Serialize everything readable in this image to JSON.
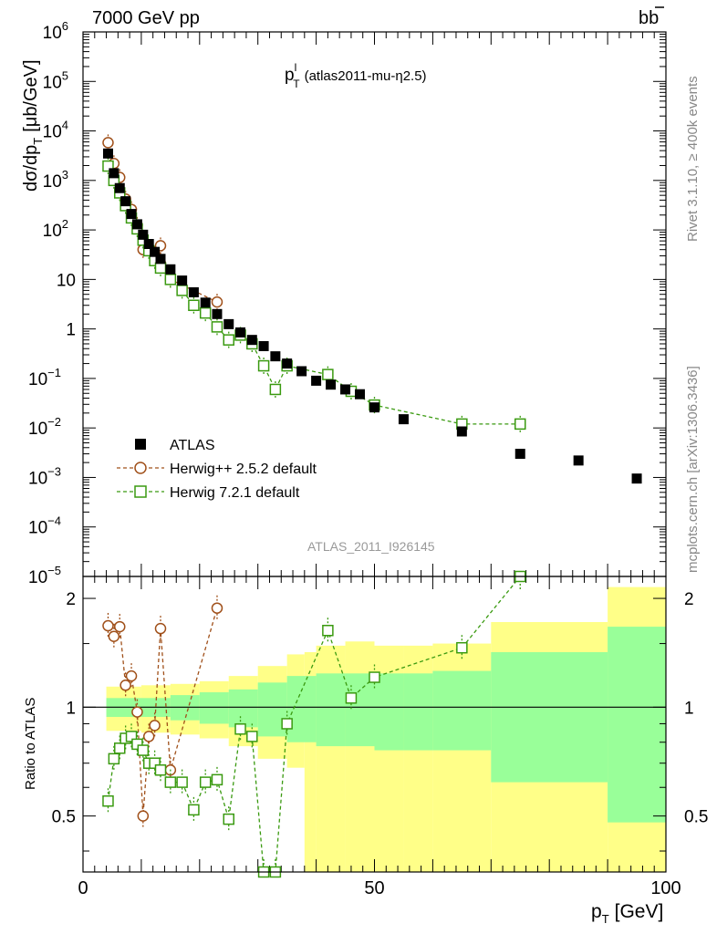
{
  "header": {
    "energy_label": "7000 GeV pp",
    "process_base": "b",
    "process_bar": "b"
  },
  "main_title": {
    "base": "p",
    "sup": "l",
    "sub": "T",
    "tag": "(atlas2011-mu-η2.5)"
  },
  "side_labels": {
    "rivet": "Rivet 3.1.10, ≥ 400k events",
    "mcplots": "mcplots.cern.ch [arXiv:1306.3436]"
  },
  "watermark": "ATLAS_2011_I926145",
  "legend": {
    "atlas": "ATLAS",
    "herwig_pp": "Herwig++ 2.5.2 default",
    "herwig7": "Herwig 7.2.1 default"
  },
  "axes": {
    "xlabel_base": "p",
    "xlabel_sub": "T",
    "xlabel_unit": "[GeV]",
    "ylabel_top_dsig": "dσ/dp",
    "ylabel_top_sub": "T",
    "ylabel_top_unit": "[μb/GeV]",
    "ylabel_ratio": "Ratio to ATLAS"
  },
  "colors": {
    "atlas": "#000000",
    "herwig_pp": "#a0501a",
    "herwig7": "#3a9a10",
    "band_inner": "#99ff99",
    "band_outer": "#ffff88"
  },
  "chart_data": {
    "type": "scatter",
    "xlim": [
      0,
      100
    ],
    "ylim": [
      1e-05,
      1000000.0
    ],
    "ratio_ylim": [
      0.35,
      2.3
    ],
    "log_y": true,
    "x_ticks": [
      0,
      50,
      100
    ],
    "ratio_ticks": [
      0.5,
      1,
      2
    ],
    "y_ticks": [
      {
        "v": 1e-05,
        "base": "10",
        "exp": "−5"
      },
      {
        "v": 0.0001,
        "base": "10",
        "exp": "−4"
      },
      {
        "v": 0.001,
        "base": "10",
        "exp": "−3"
      },
      {
        "v": 0.01,
        "base": "10",
        "exp": "−2"
      },
      {
        "v": 0.1,
        "base": "10",
        "exp": "−1"
      },
      {
        "v": 1,
        "base": "1",
        "exp": ""
      },
      {
        "v": 10,
        "base": "10",
        "exp": ""
      },
      {
        "v": 100,
        "base": "10",
        "exp": "2"
      },
      {
        "v": 1000,
        "base": "10",
        "exp": "3"
      },
      {
        "v": 10000,
        "base": "10",
        "exp": "4"
      },
      {
        "v": 100000,
        "base": "10",
        "exp": "5"
      },
      {
        "v": 1000000,
        "base": "10",
        "exp": "6"
      }
    ],
    "atlas": {
      "x": [
        4.3,
        5.3,
        6.3,
        7.3,
        8.3,
        9.3,
        10.3,
        11.3,
        12.3,
        13.3,
        15,
        17,
        19,
        21,
        23,
        25,
        27,
        29,
        31,
        33,
        35,
        37.5,
        40,
        42.5,
        45,
        47.5,
        50,
        55,
        65,
        75,
        85,
        95
      ],
      "y": [
        3500,
        1400,
        700,
        380,
        210,
        130,
        80,
        52,
        36,
        26,
        16,
        9.5,
        5.5,
        3.4,
        2.0,
        1.25,
        0.85,
        0.6,
        0.45,
        0.28,
        0.2,
        0.14,
        0.09,
        0.075,
        0.06,
        0.048,
        0.026,
        0.015,
        0.0085,
        0.003,
        0.0022,
        0.00095
      ],
      "stat_band": [
        {
          "x0": 4,
          "x1": 15,
          "lo": 0.94,
          "hi": 1.06
        },
        {
          "x0": 15,
          "x1": 20,
          "lo": 0.92,
          "hi": 1.08
        },
        {
          "x0": 20,
          "x1": 25,
          "lo": 0.9,
          "hi": 1.1
        },
        {
          "x0": 25,
          "x1": 30,
          "lo": 0.88,
          "hi": 1.12
        },
        {
          "x0": 30,
          "x1": 35,
          "lo": 0.83,
          "hi": 1.17
        },
        {
          "x0": 35,
          "x1": 40,
          "lo": 0.8,
          "hi": 1.22
        },
        {
          "x0": 40,
          "x1": 45,
          "lo": 0.78,
          "hi": 1.24
        },
        {
          "x0": 45,
          "x1": 50,
          "lo": 0.78,
          "hi": 1.24
        },
        {
          "x0": 50,
          "x1": 55,
          "lo": 0.76,
          "hi": 1.24
        },
        {
          "x0": 55,
          "x1": 60,
          "lo": 0.76,
          "hi": 1.24
        },
        {
          "x0": 60,
          "x1": 70,
          "lo": 0.76,
          "hi": 1.26
        },
        {
          "x0": 70,
          "x1": 90,
          "lo": 0.62,
          "hi": 1.42
        },
        {
          "x0": 90,
          "x1": 100,
          "lo": 0.48,
          "hi": 1.67
        }
      ],
      "total_band": [
        {
          "x0": 4,
          "x1": 10,
          "lo": 0.86,
          "hi": 1.14
        },
        {
          "x0": 10,
          "x1": 15,
          "lo": 0.85,
          "hi": 1.15
        },
        {
          "x0": 15,
          "x1": 20,
          "lo": 0.84,
          "hi": 1.16
        },
        {
          "x0": 20,
          "x1": 25,
          "lo": 0.82,
          "hi": 1.18
        },
        {
          "x0": 25,
          "x1": 30,
          "lo": 0.78,
          "hi": 1.22
        },
        {
          "x0": 30,
          "x1": 35,
          "lo": 0.72,
          "hi": 1.3
        },
        {
          "x0": 35,
          "x1": 38,
          "lo": 0.68,
          "hi": 1.4
        },
        {
          "x0": 38,
          "x1": 40,
          "lo": 0.35,
          "hi": 1.42
        },
        {
          "x0": 40,
          "x1": 45,
          "lo": 0.35,
          "hi": 1.48
        },
        {
          "x0": 45,
          "x1": 50,
          "lo": 0.35,
          "hi": 1.52
        },
        {
          "x0": 50,
          "x1": 55,
          "lo": 0.35,
          "hi": 1.48
        },
        {
          "x0": 55,
          "x1": 60,
          "lo": 0.35,
          "hi": 1.48
        },
        {
          "x0": 60,
          "x1": 70,
          "lo": 0.35,
          "hi": 1.5
        },
        {
          "x0": 70,
          "x1": 90,
          "lo": 0.35,
          "hi": 1.72
        },
        {
          "x0": 90,
          "x1": 100,
          "lo": 0.35,
          "hi": 2.15
        }
      ]
    },
    "series": [
      {
        "name": "Herwig++ 2.5.2 default",
        "x": [
          4.3,
          5.3,
          6.3,
          7.3,
          8.3,
          9.3,
          10.3,
          11.3,
          12.3,
          13.3,
          15,
          23
        ],
        "y": [
          5800,
          2200,
          1150,
          420,
          260,
          125,
          40,
          43,
          32,
          48,
          10,
          3.5
        ],
        "ratio": [
          1.68,
          1.57,
          1.67,
          1.15,
          1.22,
          0.97,
          0.5,
          0.83,
          0.89,
          1.65,
          0.67,
          1.88
        ]
      },
      {
        "name": "Herwig 7.2.1 default",
        "x": [
          4.3,
          5.3,
          6.3,
          7.3,
          8.3,
          9.3,
          10.3,
          11.3,
          12.3,
          13.3,
          15,
          17,
          19,
          21,
          23,
          25,
          27,
          29,
          31,
          33,
          35,
          42,
          46,
          50,
          65,
          75
        ],
        "y": [
          1950,
          1000,
          560,
          310,
          175,
          105,
          62,
          38,
          24,
          17,
          10,
          6,
          3,
          2.1,
          1.1,
          0.6,
          0.75,
          0.5,
          0.18,
          0.06,
          0.18,
          0.12,
          0.055,
          0.029,
          0.012,
          0.012
        ],
        "ratio": [
          0.55,
          0.72,
          0.77,
          0.82,
          0.83,
          0.79,
          0.76,
          0.7,
          0.7,
          0.67,
          0.62,
          0.62,
          0.52,
          0.62,
          0.63,
          0.49,
          0.87,
          0.83,
          0.35,
          0.35,
          0.9,
          1.63,
          1.06,
          1.21,
          1.46,
          2.3
        ]
      }
    ]
  }
}
